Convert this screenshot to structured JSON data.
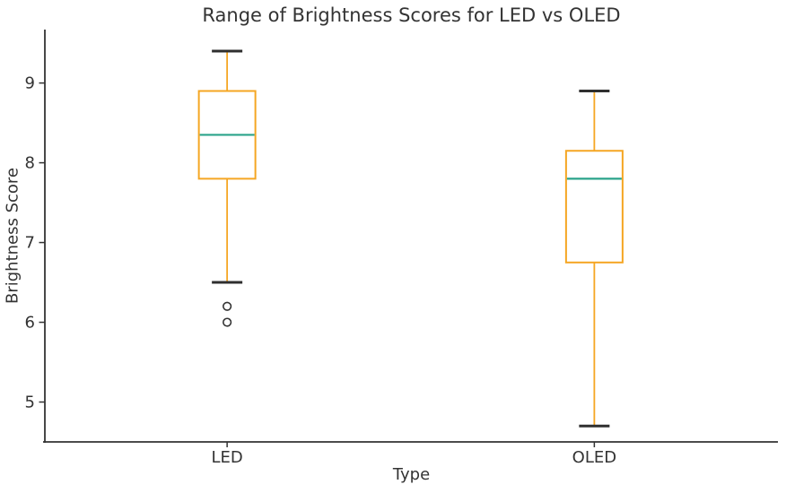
{
  "chart_data": {
    "type": "boxplot",
    "title": "Range of Brightness Scores for LED vs OLED",
    "xlabel": "Type",
    "ylabel": "Brightness Score",
    "categories": [
      "LED",
      "OLED"
    ],
    "y_ticks": [
      5,
      6,
      7,
      8,
      9
    ],
    "ylim": [
      4.5,
      9.67
    ],
    "grid": false,
    "legend": "none",
    "series": [
      {
        "name": "LED",
        "whisker_low": 6.5,
        "q1": 7.8,
        "median": 8.35,
        "q3": 8.9,
        "whisker_high": 9.4,
        "outliers": [
          6.2,
          6.0
        ]
      },
      {
        "name": "OLED",
        "whisker_low": 4.7,
        "q1": 6.75,
        "median": 7.8,
        "q3": 8.15,
        "whisker_high": 8.9,
        "outliers": []
      }
    ],
    "colors": {
      "box_edge": "#f5a623",
      "median": "#2aa38a",
      "cap": "#2f2f2f",
      "axis": "#333333",
      "text": "#333333",
      "outlier_edge": "#333333",
      "outlier_fill": "#ffffff",
      "box_fill": "#ffffff",
      "background": "#ffffff"
    }
  }
}
